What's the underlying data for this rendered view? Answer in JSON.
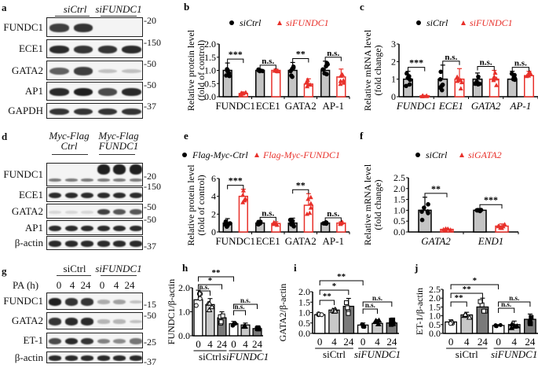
{
  "panels": {
    "a": {
      "label": "a",
      "groups": [
        "siCtrl",
        "siFUNDC1"
      ],
      "rows": [
        {
          "name": "FUNDC1",
          "mw": "20"
        },
        {
          "name": "ECE1",
          "mw": "150"
        },
        {
          "name": "GATA2",
          "mw": "50"
        },
        {
          "name": "AP1",
          "mw": "50"
        },
        {
          "name": "GAPDH",
          "mw": "37"
        }
      ]
    },
    "d": {
      "label": "d",
      "groups": [
        "Myc-Flag Ctrl",
        "Myc-Flag FUNDC1"
      ],
      "group_lines": [
        [
          "Myc-Flag",
          "Ctrl"
        ],
        [
          "Myc-Flag",
          "FUNDC1"
        ]
      ],
      "rows": [
        {
          "name": "FUNDC1",
          "mw": "20"
        },
        {
          "name": "ECE1",
          "mw": "150"
        },
        {
          "name": "GATA2",
          "mw": "50"
        },
        {
          "name": "AP1",
          "mw": "50"
        },
        {
          "name": "β-actin",
          "mw": "37"
        }
      ]
    },
    "g": {
      "label": "g",
      "groups": [
        "siCtrl",
        "siFUNDC1"
      ],
      "treatment_label": "PA (h)",
      "timepoints": [
        "0",
        "4",
        "24",
        "0",
        "4",
        "24"
      ],
      "rows": [
        {
          "name": "FUNDC1",
          "mw": "15"
        },
        {
          "name": "GATA2",
          "mw": "50"
        },
        {
          "name": "ET-1",
          "mw": "25"
        },
        {
          "name": "β-actin",
          "mw": "37"
        }
      ]
    }
  },
  "chart_data": [
    {
      "panel": "b",
      "type": "bar",
      "ylabel": "Relative protein level (fold of control)",
      "ylim": [
        0,
        2.0
      ],
      "yticks": [
        "0.0",
        "0.5",
        "1.0",
        "1.5",
        "2.0"
      ],
      "categories": [
        "FUNDC1",
        "ECE1",
        "GATA2",
        "AP-1"
      ],
      "legend": [
        "siCtrl",
        "siFUNDC1"
      ],
      "series": [
        {
          "name": "siCtrl",
          "color": "#000000",
          "values": [
            1.0,
            1.0,
            1.0,
            1.0
          ],
          "err": [
            0.28,
            0.04,
            0.3,
            0.35
          ]
        },
        {
          "name": "siFUNDC1",
          "color": "#e8302a",
          "values": [
            0.12,
            1.0,
            0.48,
            0.75
          ],
          "err": [
            0.06,
            0.05,
            0.2,
            0.3
          ]
        }
      ],
      "significance": [
        "***",
        "n.s.",
        "**",
        "n.s."
      ]
    },
    {
      "panel": "c",
      "type": "bar",
      "ylabel": "Relative mRNA level (fold change)",
      "ylim": [
        0,
        3
      ],
      "yticks": [
        "0",
        "1",
        "2",
        "3"
      ],
      "categories": [
        "FUNDC1",
        "ECE1",
        "GATA2",
        "AP-1"
      ],
      "categories_italic": true,
      "legend": [
        "siCtrl",
        "siFUNDC1"
      ],
      "series": [
        {
          "name": "siCtrl",
          "color": "#000000",
          "values": [
            1.0,
            1.0,
            1.0,
            1.0
          ],
          "err": [
            0.45,
            0.8,
            0.35,
            0.45
          ]
        },
        {
          "name": "siFUNDC1",
          "color": "#e8302a",
          "values": [
            0.05,
            1.0,
            1.0,
            1.2
          ],
          "err": [
            0.03,
            0.6,
            0.5,
            0.25
          ]
        }
      ],
      "significance": [
        "***",
        "n.s.",
        "n.s.",
        "n.s."
      ]
    },
    {
      "panel": "e",
      "type": "bar",
      "ylabel": "Relative protein level (fold of control)",
      "ylim": [
        0,
        6
      ],
      "yticks": [
        "0",
        "2",
        "4",
        "6"
      ],
      "categories": [
        "FUNDC1",
        "ECE1",
        "GATA2",
        "AP-1"
      ],
      "legend": [
        "Flag-Myc-Ctrl",
        "Flag-Myc-FUNDC1"
      ],
      "series": [
        {
          "name": "Flag-Myc-Ctrl",
          "color": "#000000",
          "values": [
            1.0,
            1.0,
            1.0,
            1.0
          ],
          "err": [
            0.5,
            0.2,
            0.55,
            0.1
          ]
        },
        {
          "name": "Flag-Myc-FUNDC1",
          "color": "#e8302a",
          "values": [
            4.0,
            0.95,
            3.0,
            1.0
          ],
          "err": [
            0.8,
            0.2,
            1.3,
            0.15
          ]
        }
      ],
      "significance": [
        "***",
        "n.s.",
        "**",
        "n.s."
      ]
    },
    {
      "panel": "f",
      "type": "bar",
      "ylabel": "Relative mRNA level (fold change)",
      "ylim": [
        0,
        2.5
      ],
      "yticks": [
        "0.0",
        "0.5",
        "1.0",
        "1.5",
        "2.0",
        "2.5"
      ],
      "categories": [
        "GATA2",
        "END1"
      ],
      "categories_italic": true,
      "legend": [
        "siCtrl",
        "siGATA2"
      ],
      "series": [
        {
          "name": "siCtrl",
          "color": "#000000",
          "values": [
            1.0,
            1.0
          ],
          "err": [
            0.6,
            0.08
          ]
        },
        {
          "name": "siGATA2",
          "color": "#e8302a",
          "values": [
            0.12,
            0.27
          ],
          "err": [
            0.05,
            0.1
          ]
        }
      ],
      "significance": [
        "**",
        "***"
      ]
    },
    {
      "panel": "h",
      "type": "bar",
      "ylabel": "FUNDC1/β-actin",
      "ylim": [
        0,
        2.0
      ],
      "yticks": [
        "0.0",
        "1.0",
        "2.0"
      ],
      "categories": [
        "0",
        "4",
        "24",
        "0",
        "4",
        "24"
      ],
      "groups": [
        "siCtrl",
        "siFUNDC1"
      ],
      "values": [
        1.5,
        1.3,
        0.75,
        0.5,
        0.45,
        0.3
      ],
      "err": [
        0.4,
        0.25,
        0.25,
        0.1,
        0.08,
        0.05
      ],
      "bar_colors": [
        "#ffffff",
        "#c8c8c8",
        "#7a7a7a",
        "#ffffff",
        "#c8c8c8",
        "#7a7a7a"
      ],
      "comparisons": [
        {
          "from": 0,
          "to": 1,
          "label": "n.s."
        },
        {
          "from": 0,
          "to": 2,
          "label": "*"
        },
        {
          "from": 0,
          "to": 3,
          "label": "**"
        },
        {
          "from": 3,
          "to": 4,
          "label": "n.s."
        },
        {
          "from": 3,
          "to": 5,
          "label": "n.s."
        }
      ]
    },
    {
      "panel": "i",
      "type": "bar",
      "ylabel": "GATA2/β-actin",
      "ylim": [
        0,
        2.0
      ],
      "yticks": [
        "0.0",
        "0.5",
        "1.0",
        "1.5",
        "2.0"
      ],
      "categories": [
        "0",
        "4",
        "24",
        "0",
        "4",
        "24"
      ],
      "groups": [
        "siCtrl",
        "siFUNDC1"
      ],
      "values": [
        0.9,
        1.12,
        1.3,
        0.4,
        0.48,
        0.5
      ],
      "err": [
        0.08,
        0.08,
        0.38,
        0.1,
        0.18,
        0.2
      ],
      "bar_colors": [
        "#ffffff",
        "#c8c8c8",
        "#7a7a7a",
        "#ffffff",
        "#c8c8c8",
        "#7a7a7a"
      ],
      "comparisons": [
        {
          "from": 0,
          "to": 1,
          "label": "**"
        },
        {
          "from": 0,
          "to": 2,
          "label": "*"
        },
        {
          "from": 0,
          "to": 3,
          "label": "**"
        },
        {
          "from": 3,
          "to": 4,
          "label": "n.s."
        },
        {
          "from": 3,
          "to": 5,
          "label": "n.s."
        }
      ]
    },
    {
      "panel": "j",
      "type": "bar",
      "ylabel": "ET-1/β-actin",
      "ylim": [
        0,
        2.5
      ],
      "yticks": [
        "0.0",
        "0.5",
        "1.0",
        "1.5",
        "2.0",
        "2.5"
      ],
      "categories": [
        "0",
        "4",
        "24",
        "0",
        "4",
        "24"
      ],
      "groups": [
        "siCtrl",
        "siFUNDC1"
      ],
      "values": [
        0.65,
        1.05,
        1.5,
        0.45,
        0.5,
        0.8
      ],
      "err": [
        0.12,
        0.15,
        0.5,
        0.05,
        0.2,
        0.3
      ],
      "bar_colors": [
        "#ffffff",
        "#c8c8c8",
        "#7a7a7a",
        "#ffffff",
        "#c8c8c8",
        "#7a7a7a"
      ],
      "comparisons": [
        {
          "from": 0,
          "to": 1,
          "label": "**"
        },
        {
          "from": 0,
          "to": 2,
          "label": "**"
        },
        {
          "from": 0,
          "to": 3,
          "label": "*"
        },
        {
          "from": 3,
          "to": 4,
          "label": "n.s."
        },
        {
          "from": 3,
          "to": 5,
          "label": "n.s."
        }
      ]
    }
  ]
}
